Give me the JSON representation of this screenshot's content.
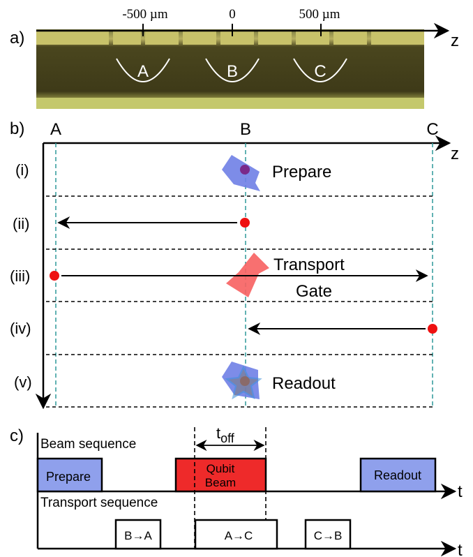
{
  "panel_a": {
    "label": "a)",
    "axis_label": "z",
    "ticks": [
      "-500 µm",
      "0",
      "500 µm"
    ],
    "traps": [
      "A",
      "B",
      "C"
    ],
    "colors": {
      "photo_top": "#8d8a4a",
      "photo_mid": "#3e3a18",
      "photo_bottom": "#c2c66a",
      "trap_curve": "#ffffff"
    }
  },
  "panel_b": {
    "label": "b)",
    "axis_label": "z",
    "positions": [
      "A",
      "B",
      "C"
    ],
    "steps": [
      {
        "label": "(i)",
        "text": "Prepare"
      },
      {
        "label": "(ii)",
        "text": ""
      },
      {
        "label": "(iii)",
        "text": "Transport"
      },
      {
        "label": "(iv)",
        "text": ""
      },
      {
        "label": "(v)",
        "text": "Readout"
      }
    ],
    "gate_text": "Gate",
    "colors": {
      "blue_beam": "#6f7fe6",
      "red_beam": "#f76060",
      "ion_red": "#ee1111",
      "ion_purple": "#7a2a8a",
      "dashed_teal": "#3a9fa0",
      "star": "#3a8fd8"
    }
  },
  "panel_c": {
    "label": "c)",
    "beam_sequence_label": "Beam sequence",
    "transport_sequence_label": "Transport sequence",
    "toff_label": "t",
    "toff_subscript": "off",
    "time_axis_label": "t",
    "beam_blocks": [
      "Prepare",
      "Qubit",
      "Beam",
      "Readout"
    ],
    "transport_blocks": [
      "B→A",
      "A→C",
      "C→B"
    ],
    "colors": {
      "prepare_readout": "#8fa0ec",
      "qubit_beam": "#ee2a2a"
    }
  }
}
